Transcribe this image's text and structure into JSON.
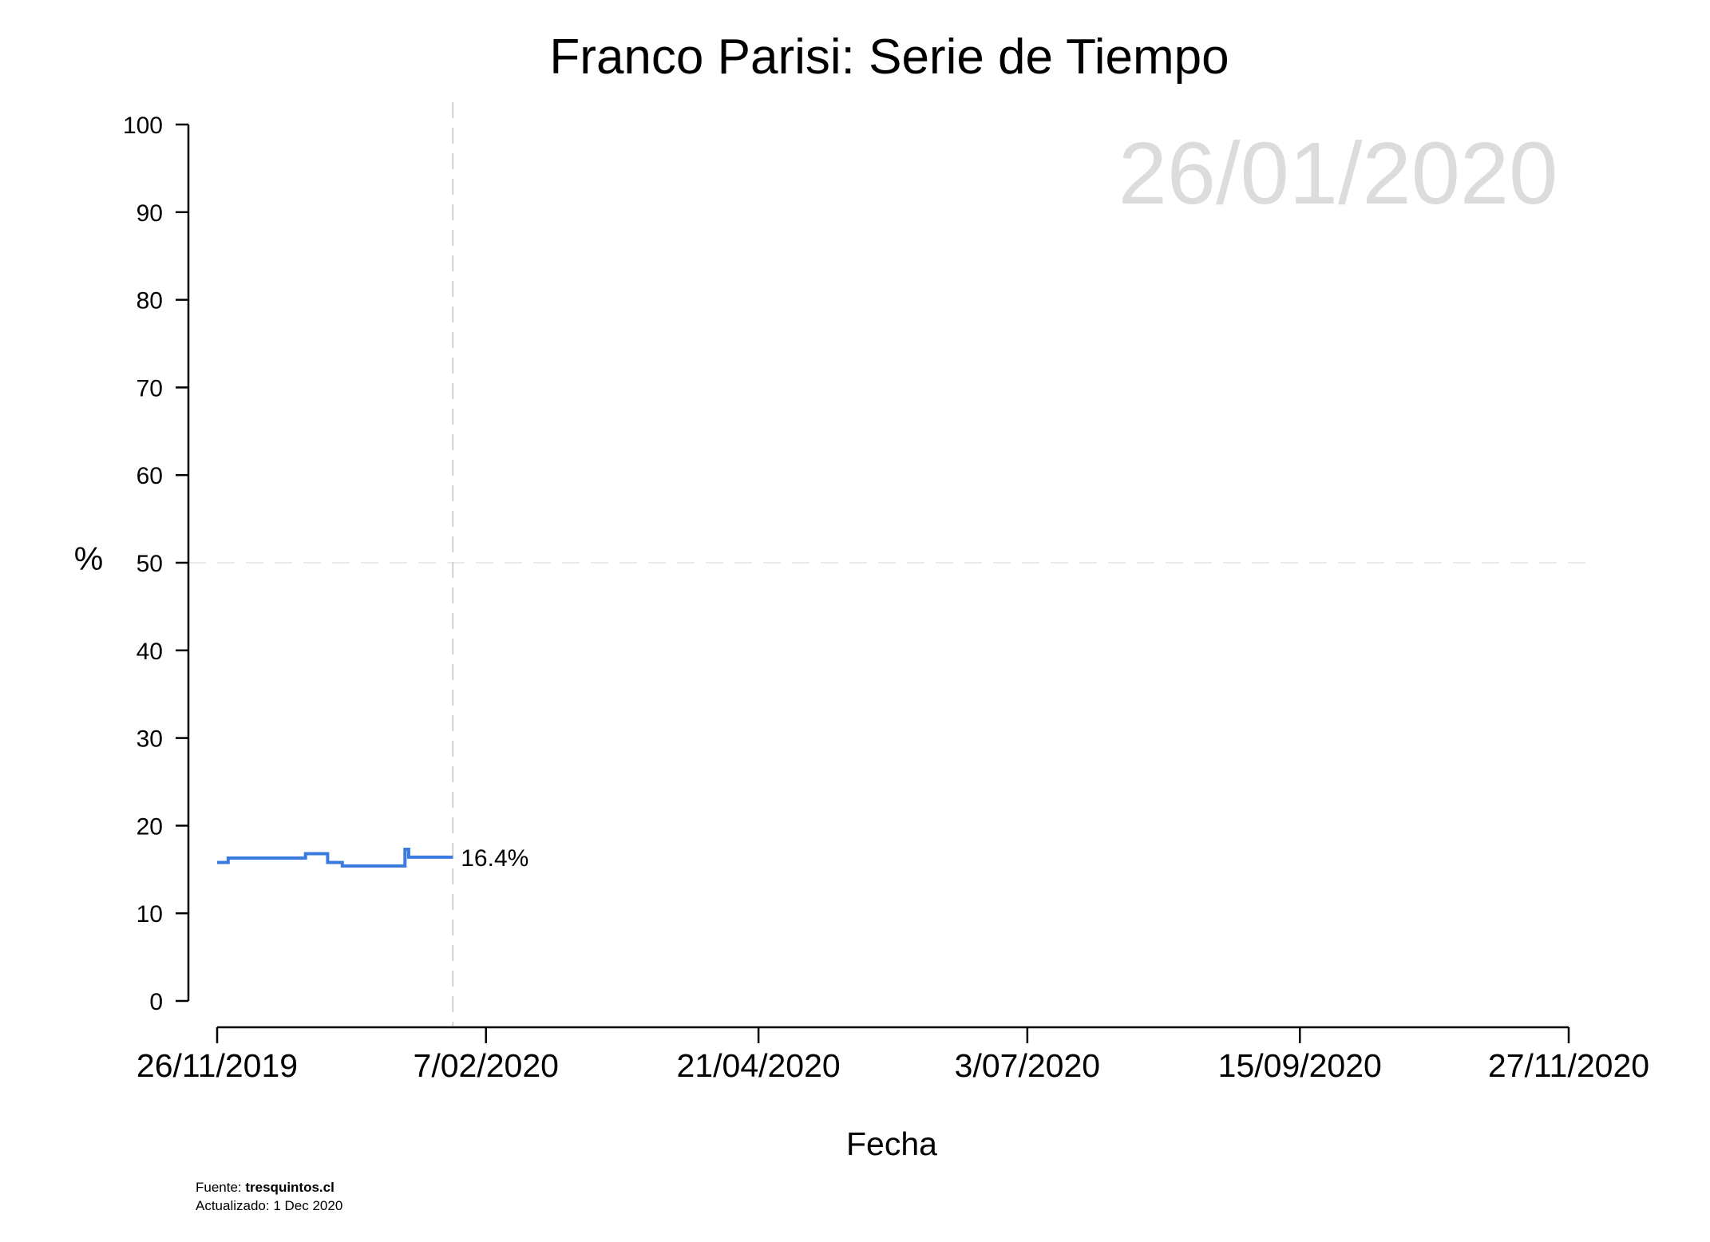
{
  "chart_data": {
    "type": "line",
    "title": "Franco Parisi: Serie de Tiempo",
    "watermark_date": "26/01/2020",
    "xlabel": "Fecha",
    "ylabel": "%",
    "ylim": [
      0,
      100
    ],
    "yticks": [
      0,
      10,
      20,
      30,
      40,
      50,
      60,
      70,
      80,
      90,
      100
    ],
    "ytick_labels": [
      "0",
      "10",
      "20",
      "30",
      "40",
      "50",
      "60",
      "70",
      "80",
      "90",
      "100"
    ],
    "xlim": [
      "2019-11-26",
      "2020-11-27"
    ],
    "xticks": [
      "2019-11-26",
      "2020-02-07",
      "2020-04-21",
      "2020-07-03",
      "2020-09-15",
      "2020-11-27"
    ],
    "xtick_labels": [
      "26/11/2019",
      "7/02/2020",
      "21/04/2020",
      "3/07/2020",
      "15/09/2020",
      "27/11/2020"
    ],
    "reference_lines": {
      "horizontal_y": 50,
      "vertical_date": "2020-01-29"
    },
    "step": "post",
    "series": [
      {
        "color": "#3a7be0",
        "x": [
          "2019-11-26",
          "2019-11-29",
          "2019-12-20",
          "2019-12-26",
          "2019-12-30",
          "2020-01-16",
          "2020-01-17",
          "2020-01-18",
          "2020-01-29"
        ],
        "y": [
          15.8,
          16.3,
          16.8,
          15.8,
          15.4,
          17.3,
          16.4,
          16.4,
          16.4
        ]
      }
    ],
    "end_label": "16.4%",
    "grid": false,
    "legend": "none"
  },
  "footer": {
    "source_label": "Fuente: ",
    "source_site": "tresquintos.cl",
    "updated": "Actualizado: 1 Dec 2020"
  }
}
